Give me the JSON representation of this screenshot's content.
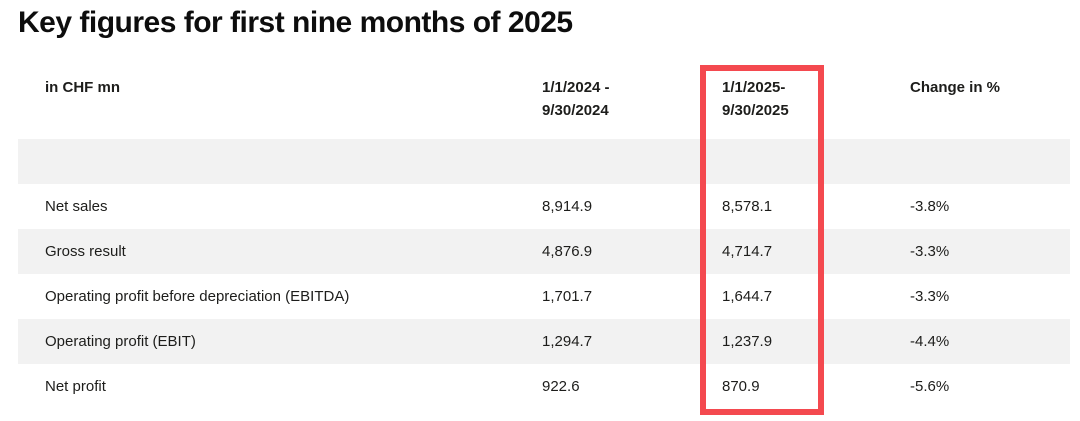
{
  "page": {
    "title": "Key figures for first nine months of 2025"
  },
  "table": {
    "unit_header": "in CHF mn",
    "columns": [
      {
        "line1": "1/1/2024 -",
        "line2": "9/30/2024"
      },
      {
        "line1": "1/1/2025-",
        "line2": "9/30/2025"
      },
      {
        "line1": "Change in %",
        "line2": ""
      }
    ],
    "rows": [
      {
        "label": "Net sales",
        "prev": "8,914.9",
        "curr": "8,578.1",
        "change": "-3.8%"
      },
      {
        "label": "Gross result",
        "prev": "4,876.9",
        "curr": "4,714.7",
        "change": "-3.3%"
      },
      {
        "label": "Operating profit before depreciation (EBITDA)",
        "prev": "1,701.7",
        "curr": "1,644.7",
        "change": "-3.3%"
      },
      {
        "label": "Operating profit (EBIT)",
        "prev": "1,294.7",
        "curr": "1,237.9",
        "change": "-4.4%"
      },
      {
        "label": "Net profit",
        "prev": "922.6",
        "curr": "870.9",
        "change": "-5.6%"
      }
    ]
  },
  "highlight": {
    "highlighted_column": "1/1/2025- 9/30/2025",
    "color": "#f4494f"
  },
  "colors": {
    "row_alt": "#f2f2f2",
    "text": "#1d1d1b"
  }
}
